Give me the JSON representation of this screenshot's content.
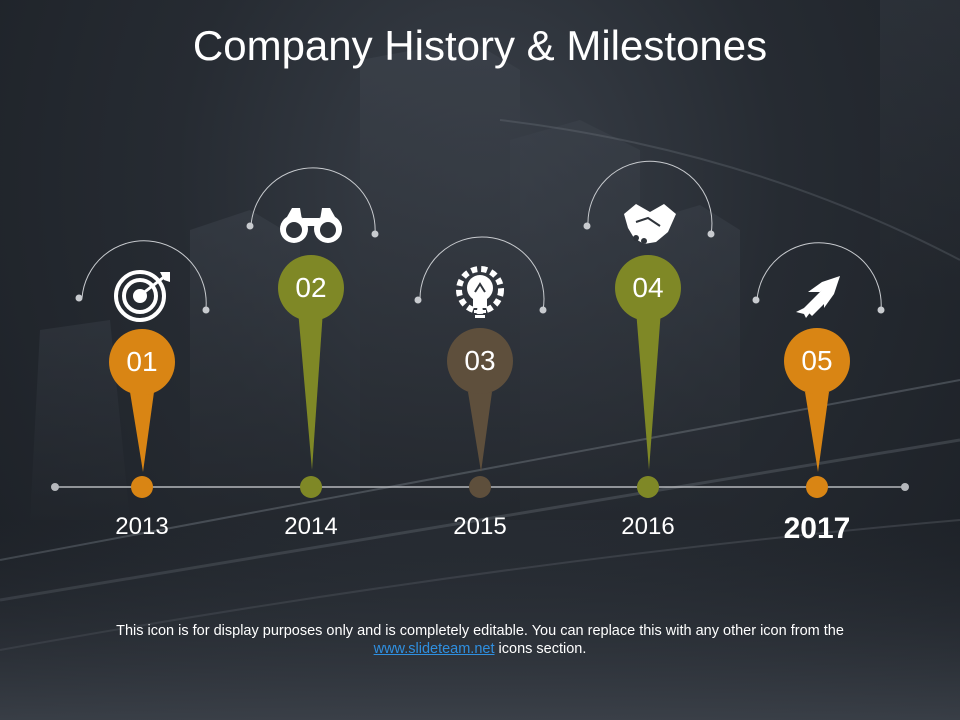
{
  "title": "Company History & Milestones",
  "colors": {
    "orange": "#d98514",
    "olive": "#7f8826",
    "brown": "#5e4f3c",
    "line": "#b5b8bc",
    "arc": "#c8cbcf",
    "link": "#2f8fe0"
  },
  "milestones": [
    {
      "number": "01",
      "year": "2013",
      "icon": "target-icon",
      "color": "orange"
    },
    {
      "number": "02",
      "year": "2014",
      "icon": "binoculars-icon",
      "color": "olive"
    },
    {
      "number": "03",
      "year": "2015",
      "icon": "lightbulb-gear-icon",
      "color": "brown"
    },
    {
      "number": "04",
      "year": "2016",
      "icon": "handshake-icon",
      "color": "olive"
    },
    {
      "number": "05",
      "year": "2017",
      "icon": "rocket-icon",
      "color": "orange"
    }
  ],
  "footer": {
    "text_before": "This icon is for display purposes only and is completely editable. You can replace this with any other icon from the ",
    "link_text": "www.slideteam.net",
    "text_after": " icons section."
  }
}
